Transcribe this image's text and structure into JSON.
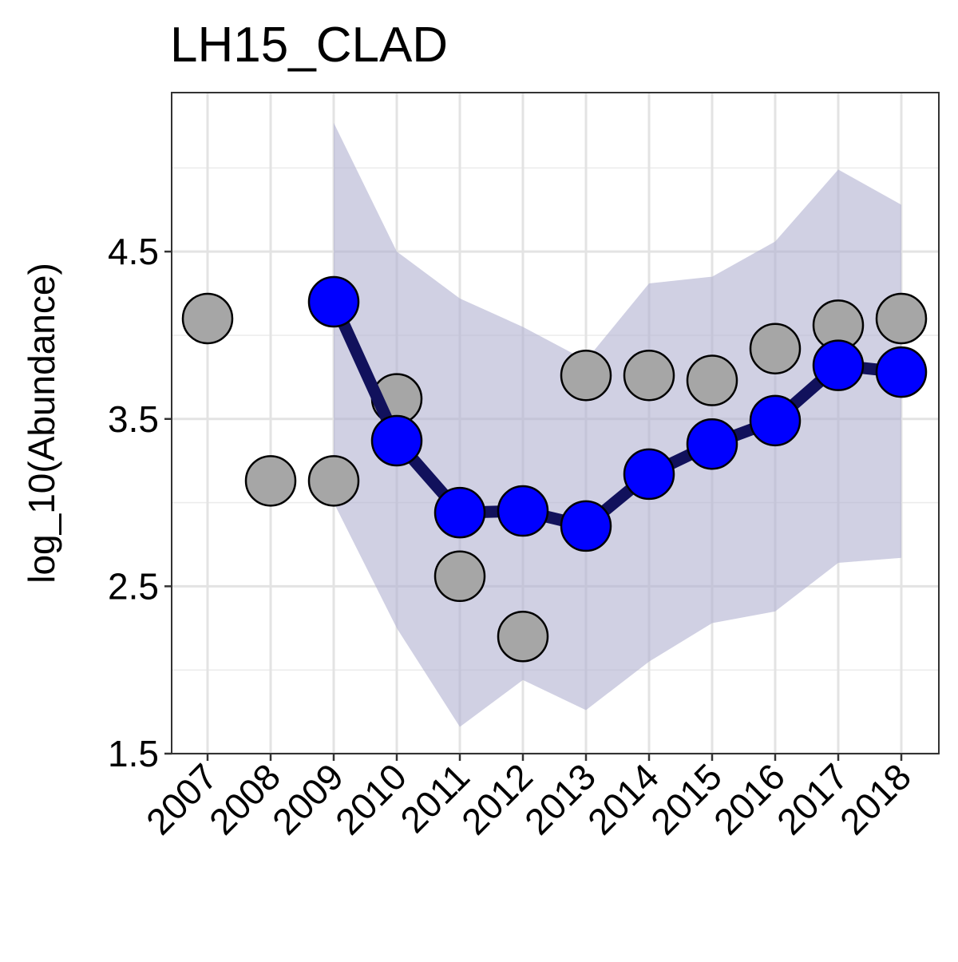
{
  "chart_data": {
    "type": "line",
    "title": "LH15_CLAD",
    "xlabel": "",
    "ylabel": "log_10(Abundance)",
    "x": [
      "2007",
      "2008",
      "2009",
      "2010",
      "2011",
      "2012",
      "2013",
      "2014",
      "2015",
      "2016",
      "2017",
      "2018"
    ],
    "ylim": [
      1.5,
      5.45
    ],
    "y_ticks": [
      1.5,
      2.5,
      3.5,
      4.5
    ],
    "y_tick_labels": [
      "1.5",
      "2.5",
      "3.5",
      "4.5"
    ],
    "grid": true,
    "colors": {
      "observed": "#a6a6a6",
      "estimate_point": "#0000ff",
      "estimate_line": "#11115c",
      "ribbon": "#b0b0d0"
    },
    "series": [
      {
        "kind": "observed",
        "values": [
          4.1,
          3.13,
          3.13,
          3.62,
          2.56,
          2.2,
          3.76,
          3.76,
          3.73,
          3.92,
          4.06,
          4.1
        ]
      },
      {
        "kind": "estimate",
        "values": [
          null,
          null,
          4.2,
          3.37,
          2.94,
          2.95,
          2.86,
          3.17,
          3.35,
          3.49,
          3.82,
          3.78
        ]
      },
      {
        "kind": "interval",
        "lower": [
          null,
          null,
          3.0,
          2.25,
          1.66,
          1.94,
          1.76,
          2.05,
          2.28,
          2.35,
          2.64,
          2.67
        ],
        "upper": [
          null,
          null,
          5.27,
          4.5,
          4.22,
          4.05,
          3.85,
          4.31,
          4.35,
          4.56,
          4.99,
          4.78
        ]
      }
    ]
  }
}
